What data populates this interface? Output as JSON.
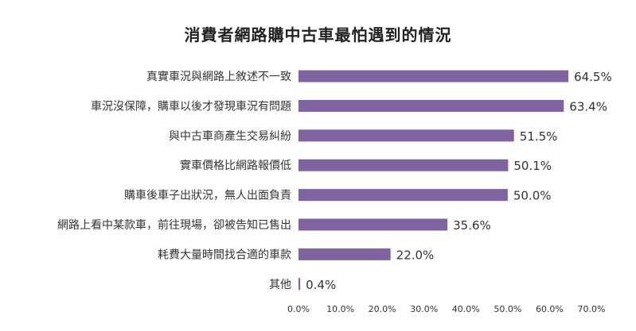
{
  "chart_data": {
    "type": "bar",
    "orientation": "horizontal",
    "title": "消費者網路購中古車最怕遇到的情況",
    "categories": [
      "真實車況與網路上敘述不一致",
      "車況沒保障，購車以後才發現車況有問題",
      "與中古車商產生交易糾紛",
      "實車價格比網路報價低",
      "購車後車子出狀況，無人出面負責",
      "網路上看中某款車，前往現場，卻被告知已售出",
      "耗費大量時間找合適的車款",
      "其他"
    ],
    "values": [
      64.5,
      63.4,
      51.5,
      50.1,
      50.0,
      35.6,
      22.0,
      0.4
    ],
    "value_labels": [
      "64.5%",
      "63.4%",
      "51.5%",
      "50.1%",
      "50.0%",
      "35.6%",
      "22.0%",
      "0.4%"
    ],
    "xlim": [
      0,
      70
    ],
    "xticks": [
      "0.0%",
      "10.0%",
      "20.0%",
      "30.0%",
      "40.0%",
      "50.0%",
      "60.0%",
      "70.0%"
    ],
    "xlabel": "",
    "ylabel": "",
    "grid": false,
    "bar_color": "#8064a2"
  }
}
